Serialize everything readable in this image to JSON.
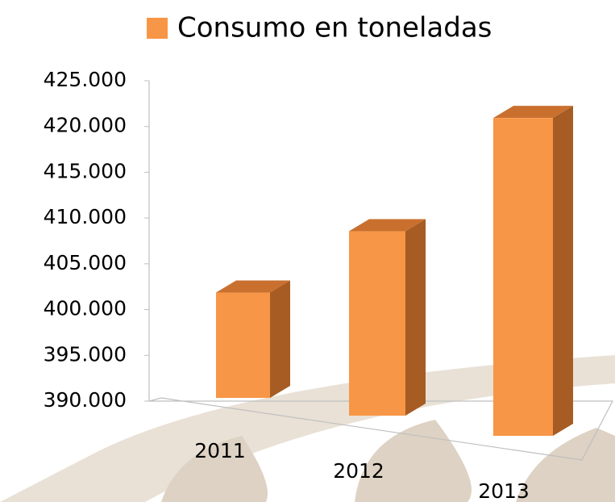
{
  "chart_data": {
    "type": "bar3d",
    "categories": [
      "2011",
      "2012",
      "2013"
    ],
    "series": [
      {
        "name": "Consumo en toneladas",
        "color": "#f79646",
        "values": [
          401500,
          409000,
          421000
        ]
      }
    ],
    "ylim": [
      390000,
      425000
    ],
    "yticks": [
      {
        "value": 390000,
        "label": "390.000"
      },
      {
        "value": 395000,
        "label": "395.000"
      },
      {
        "value": 400000,
        "label": "400.000"
      },
      {
        "value": 405000,
        "label": "405.000"
      },
      {
        "value": 410000,
        "label": "410.000"
      },
      {
        "value": 415000,
        "label": "415.000"
      },
      {
        "value": 420000,
        "label": "420.000"
      },
      {
        "value": 425000,
        "label": "425.000"
      }
    ],
    "legend": "top"
  }
}
